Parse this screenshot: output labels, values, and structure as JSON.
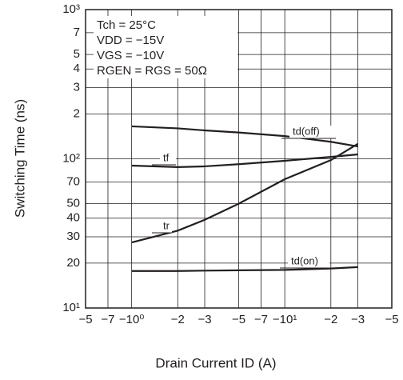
{
  "chart_data": {
    "type": "line",
    "xlabel": "Drain Current   ID  (A)",
    "ylabel": "Switching Time  (ns)",
    "annotations": [
      "Tch = 25°C",
      "VDD = −15V",
      "VGS = −10V",
      "RGEN = RGS = 50Ω"
    ],
    "x": [
      -1,
      -2,
      -3,
      -5,
      -10,
      -20,
      -30
    ],
    "series": [
      {
        "name": "td(off)",
        "color": "#231f20",
        "values": [
          165,
          160,
          155,
          150,
          142,
          130,
          121
        ]
      },
      {
        "name": "tf",
        "color": "#231f20",
        "values": [
          90,
          88,
          89,
          92,
          97,
          103,
          107
        ]
      },
      {
        "name": "tr",
        "color": "#231f20",
        "values": [
          27.5,
          33,
          39,
          50,
          73,
          98,
          126
        ]
      },
      {
        "name": "td(on)",
        "color": "#231f20",
        "values": [
          17.7,
          17.7,
          17.8,
          17.9,
          18,
          18.4,
          18.8
        ]
      }
    ],
    "xscale": "log",
    "yscale": "log",
    "grid": true,
    "xlim": [
      -0.5,
      -50
    ],
    "xticks": [
      {
        "value": -0.5,
        "label": "−5"
      },
      {
        "value": -0.7,
        "label": "−7"
      },
      {
        "value": -1,
        "label": "−10⁰"
      },
      {
        "value": -2,
        "label": "−2"
      },
      {
        "value": -3,
        "label": "−3"
      },
      {
        "value": -5,
        "label": "−5"
      },
      {
        "value": -7,
        "label": "−7"
      },
      {
        "value": -10,
        "label": "−10¹"
      },
      {
        "value": -20,
        "label": "−2"
      },
      {
        "value": -30,
        "label": "−3"
      },
      {
        "value": -50,
        "label": "−5"
      }
    ],
    "ylim": [
      10,
      1000
    ],
    "yticks": [
      {
        "value": 10,
        "label": "10¹"
      },
      20,
      30,
      40,
      50,
      70,
      {
        "value": 100,
        "label": "10²"
      },
      {
        "value": 200,
        "label": "2"
      },
      {
        "value": 300,
        "label": "3"
      },
      {
        "value": 400,
        "label": "4"
      },
      {
        "value": 500,
        "label": "5"
      },
      {
        "value": 700,
        "label": "7"
      },
      {
        "value": 1000,
        "label": "10³"
      }
    ]
  }
}
